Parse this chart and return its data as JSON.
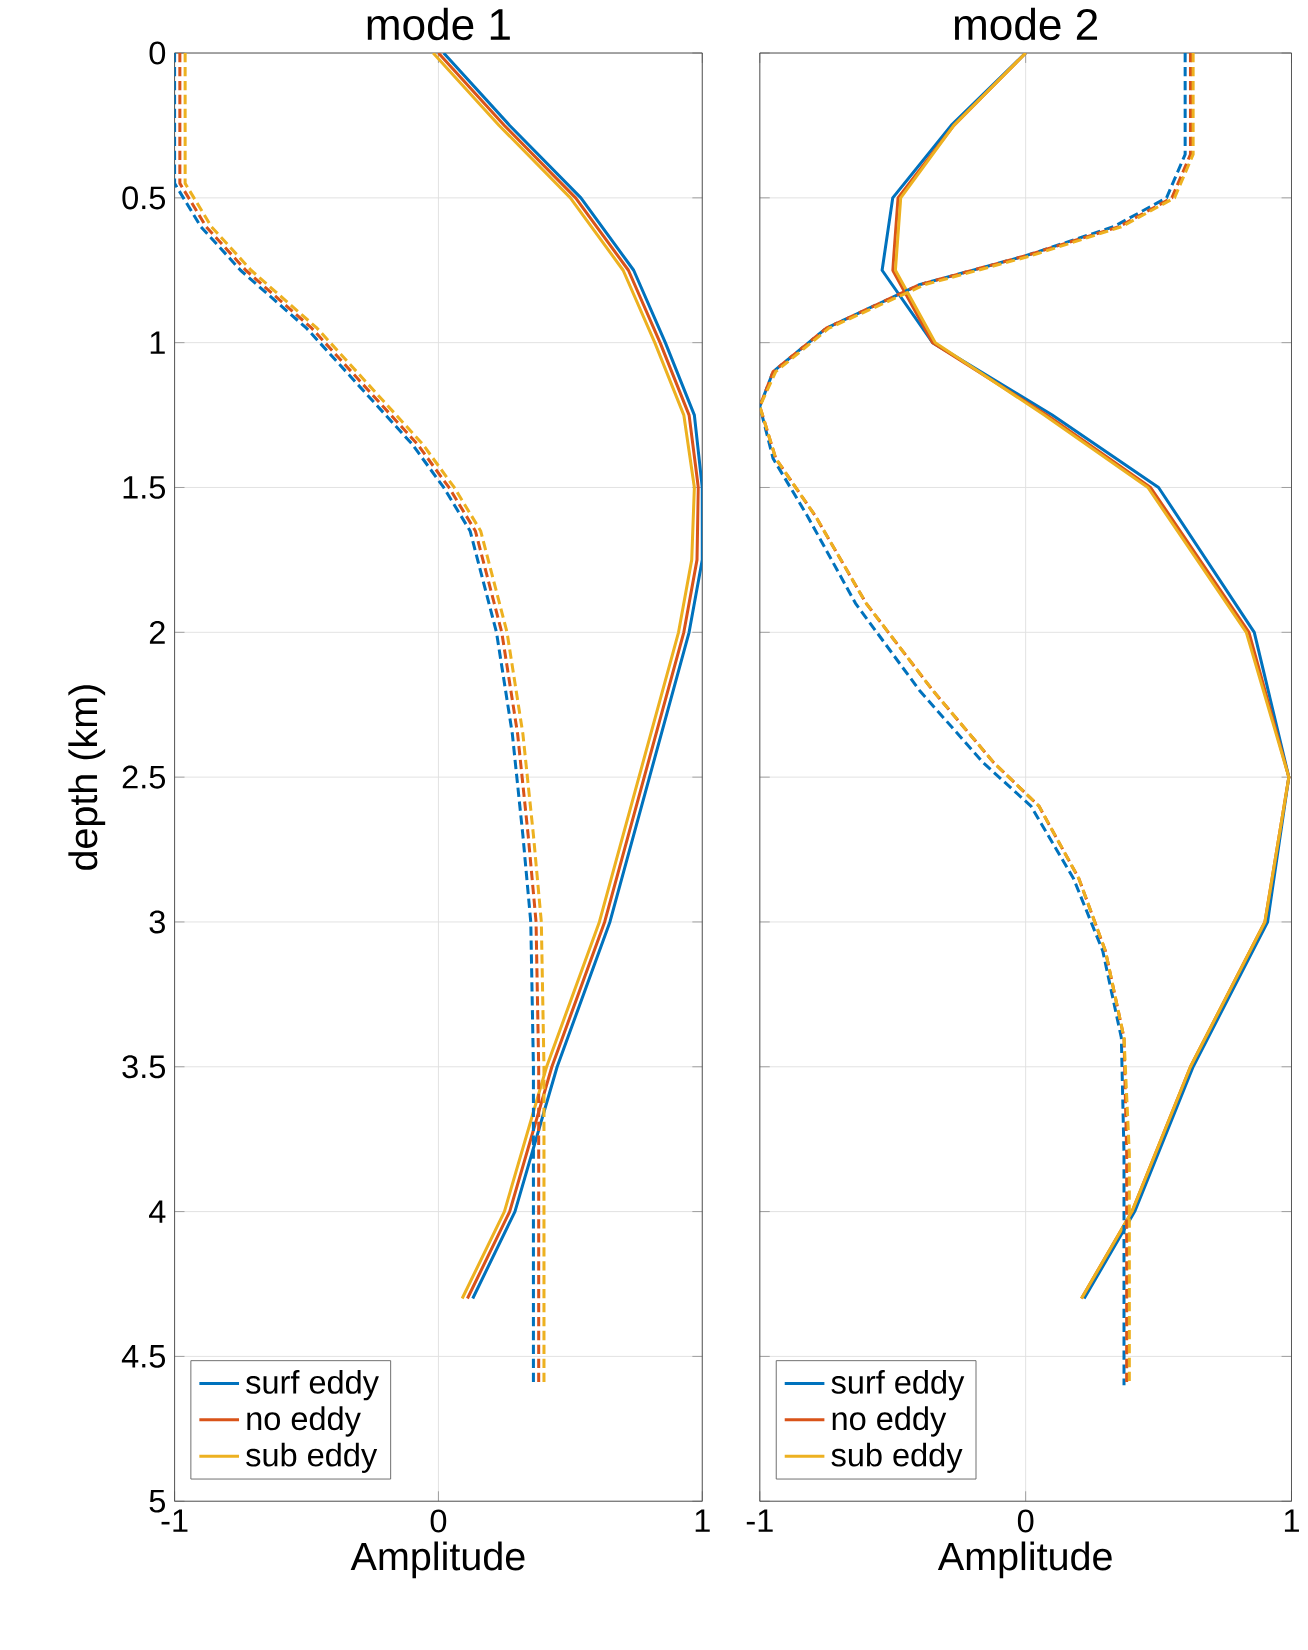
{
  "chart_data": [
    {
      "type": "line",
      "title": "mode 1",
      "xlabel": "Amplitude",
      "ylabel": "depth (km)",
      "xlim": [
        -1,
        1
      ],
      "xticks": [
        -1,
        0,
        1
      ],
      "ylim": [
        5,
        0
      ],
      "yticks": [
        0,
        0.5,
        1,
        1.5,
        2,
        2.5,
        3,
        3.5,
        4,
        4.5,
        5
      ],
      "grid": true,
      "legend": "bottom left",
      "marker": "none",
      "series": [
        {
          "name": "surf eddy",
          "color": "#0072bd",
          "line_style": "solid",
          "x": [
            0.02,
            0.27,
            0.54,
            0.74,
            0.86,
            0.97,
            1.0,
            1.0,
            0.95,
            0.8,
            0.65,
            0.45,
            0.29,
            0.13
          ],
          "values": [
            0,
            0.25,
            0.5,
            0.75,
            1.0,
            1.25,
            1.5,
            1.75,
            2.0,
            2.5,
            3.0,
            3.5,
            4.0,
            4.3
          ]
        },
        {
          "name": "no eddy",
          "color": "#d95319",
          "line_style": "solid",
          "x": [
            0,
            0.25,
            0.52,
            0.72,
            0.84,
            0.95,
            0.985,
            0.98,
            0.93,
            0.78,
            0.63,
            0.43,
            0.27,
            0.11
          ],
          "values": [
            0,
            0.25,
            0.5,
            0.75,
            1.0,
            1.25,
            1.5,
            1.75,
            2.0,
            2.5,
            3.0,
            3.5,
            4.0,
            4.3
          ]
        },
        {
          "name": "sub eddy",
          "color": "#edb120",
          "line_style": "solid",
          "x": [
            -0.02,
            0.23,
            0.5,
            0.7,
            0.82,
            0.93,
            0.97,
            0.96,
            0.91,
            0.76,
            0.61,
            0.41,
            0.25,
            0.09
          ],
          "values": [
            0,
            0.25,
            0.5,
            0.75,
            1.0,
            1.25,
            1.5,
            1.75,
            2.0,
            2.5,
            3.0,
            3.5,
            4.0,
            4.3
          ]
        },
        {
          "color": "#0072bd",
          "line_style": "dashed",
          "x": [
            -1,
            -1,
            -0.9,
            -0.75,
            -0.5,
            -0.3,
            -0.1,
            0.02,
            0.12,
            0.22,
            0.28,
            0.32,
            0.35,
            0.36,
            0.36
          ],
          "values": [
            0,
            0.45,
            0.6,
            0.75,
            0.95,
            1.15,
            1.35,
            1.5,
            1.65,
            2.0,
            2.35,
            2.7,
            3.0,
            3.5,
            4.6
          ]
        },
        {
          "color": "#d95319",
          "line_style": "dashed",
          "x": [
            -0.98,
            -0.98,
            -0.88,
            -0.73,
            -0.48,
            -0.28,
            -0.08,
            0.04,
            0.14,
            0.24,
            0.3,
            0.34,
            0.37,
            0.38,
            0.38
          ],
          "values": [
            0,
            0.45,
            0.6,
            0.75,
            0.95,
            1.15,
            1.35,
            1.5,
            1.65,
            2.0,
            2.35,
            2.7,
            3.0,
            3.5,
            4.6
          ]
        },
        {
          "color": "#edb120",
          "line_style": "dashed",
          "x": [
            -0.96,
            -0.96,
            -0.86,
            -0.71,
            -0.46,
            -0.26,
            -0.06,
            0.06,
            0.16,
            0.26,
            0.32,
            0.36,
            0.39,
            0.4,
            0.4
          ],
          "values": [
            0,
            0.45,
            0.6,
            0.75,
            0.95,
            1.15,
            1.35,
            1.5,
            1.65,
            2.0,
            2.35,
            2.7,
            3.0,
            3.5,
            4.6
          ]
        }
      ]
    },
    {
      "type": "line",
      "title": "mode 2",
      "xlabel": "Amplitude",
      "xlim": [
        -1,
        1
      ],
      "xticks": [
        -1,
        0,
        1
      ],
      "ylim": [
        5,
        0
      ],
      "yticks": [
        0,
        0.5,
        1,
        1.5,
        2,
        2.5,
        3,
        3.5,
        4,
        4.5,
        5
      ],
      "grid": true,
      "legend": "bottom left",
      "marker": "none",
      "tick_labels": "x",
      "series": [
        {
          "name": "surf eddy",
          "color": "#0072bd",
          "line_style": "solid",
          "x": [
            0,
            -0.28,
            -0.5,
            -0.54,
            -0.35,
            0.1,
            0.5,
            0.86,
            0.99,
            0.91,
            0.63,
            0.41,
            0.22
          ],
          "values": [
            0,
            0.25,
            0.5,
            0.75,
            1.0,
            1.25,
            1.5,
            2.0,
            2.5,
            3.0,
            3.5,
            4.0,
            4.3
          ]
        },
        {
          "name": "no eddy",
          "color": "#d95319",
          "line_style": "solid",
          "x": [
            0,
            -0.27,
            -0.48,
            -0.5,
            -0.35,
            0.08,
            0.47,
            0.84,
            0.99,
            0.9,
            0.62,
            0.4,
            0.21
          ],
          "values": [
            0,
            0.25,
            0.5,
            0.75,
            1.0,
            1.25,
            1.5,
            2.0,
            2.5,
            3.0,
            3.5,
            4.0,
            4.3
          ]
        },
        {
          "name": "sub eddy",
          "color": "#edb120",
          "line_style": "solid",
          "x": [
            0,
            -0.27,
            -0.47,
            -0.49,
            -0.34,
            0.07,
            0.46,
            0.83,
            0.99,
            0.9,
            0.62,
            0.4,
            0.21
          ],
          "values": [
            0,
            0.25,
            0.5,
            0.75,
            1.0,
            1.25,
            1.5,
            2.0,
            2.5,
            3.0,
            3.5,
            4.0,
            4.3
          ]
        },
        {
          "color": "#0072bd",
          "line_style": "dashed",
          "x": [
            0.6,
            0.6,
            0.53,
            0.33,
            0.0,
            -0.4,
            -0.75,
            -0.95,
            -1,
            -0.95,
            -0.82,
            -0.64,
            -0.4,
            -0.16,
            0.02,
            0.18,
            0.29,
            0.36,
            0.37,
            0.37
          ],
          "values": [
            0,
            0.35,
            0.5,
            0.6,
            0.7,
            0.8,
            0.95,
            1.1,
            1.22,
            1.4,
            1.6,
            1.9,
            2.2,
            2.45,
            2.6,
            2.85,
            3.1,
            3.4,
            3.8,
            4.6
          ]
        },
        {
          "color": "#d95319",
          "line_style": "dashed",
          "x": [
            0.62,
            0.62,
            0.55,
            0.35,
            0.0,
            -0.4,
            -0.75,
            -0.95,
            -1,
            -0.94,
            -0.79,
            -0.6,
            -0.35,
            -0.12,
            0.05,
            0.2,
            0.3,
            0.37,
            0.38,
            0.38
          ],
          "values": [
            0,
            0.35,
            0.5,
            0.6,
            0.7,
            0.8,
            0.95,
            1.1,
            1.22,
            1.4,
            1.6,
            1.9,
            2.2,
            2.45,
            2.6,
            2.85,
            3.1,
            3.4,
            3.8,
            4.6
          ]
        },
        {
          "color": "#edb120",
          "line_style": "dashed",
          "x": [
            0.63,
            0.63,
            0.56,
            0.36,
            0.02,
            -0.38,
            -0.74,
            -0.94,
            -1,
            -0.94,
            -0.79,
            -0.6,
            -0.35,
            -0.12,
            0.05,
            0.2,
            0.3,
            0.37,
            0.39,
            0.39
          ],
          "values": [
            0,
            0.35,
            0.5,
            0.6,
            0.7,
            0.8,
            0.95,
            1.1,
            1.22,
            1.4,
            1.6,
            1.9,
            2.2,
            2.45,
            2.6,
            2.85,
            3.1,
            3.4,
            3.8,
            4.6
          ]
        }
      ]
    }
  ]
}
